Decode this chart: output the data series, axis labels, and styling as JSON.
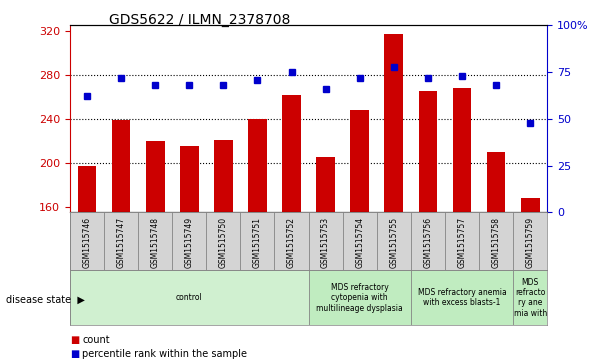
{
  "title": "GDS5622 / ILMN_2378708",
  "samples": [
    "GSM1515746",
    "GSM1515747",
    "GSM1515748",
    "GSM1515749",
    "GSM1515750",
    "GSM1515751",
    "GSM1515752",
    "GSM1515753",
    "GSM1515754",
    "GSM1515755",
    "GSM1515756",
    "GSM1515757",
    "GSM1515758",
    "GSM1515759"
  ],
  "counts": [
    197,
    239,
    220,
    215,
    221,
    240,
    262,
    205,
    248,
    317,
    265,
    268,
    210,
    168
  ],
  "percentiles": [
    62,
    72,
    68,
    68,
    68,
    71,
    75,
    66,
    72,
    78,
    72,
    73,
    68,
    48
  ],
  "ylim_left": [
    155,
    325
  ],
  "ylim_right": [
    0,
    100
  ],
  "yticks_left": [
    160,
    200,
    240,
    280,
    320
  ],
  "yticks_right": [
    0,
    25,
    50,
    75,
    100
  ],
  "bar_color": "#cc0000",
  "dot_color": "#0000cc",
  "grid_color": "#000000",
  "tick_label_color_left": "#cc0000",
  "tick_label_color_right": "#0000cc",
  "sample_bg_color": "#d4d4d4",
  "disease_groups": [
    {
      "label": "control",
      "start": 0,
      "end": 7,
      "color": "#d0f0d0"
    },
    {
      "label": "MDS refractory\ncytopenia with\nmultilineage dysplasia",
      "start": 7,
      "end": 10,
      "color": "#c0ecc0"
    },
    {
      "label": "MDS refractory anemia\nwith excess blasts-1",
      "start": 10,
      "end": 13,
      "color": "#c0ecc0"
    },
    {
      "label": "MDS\nrefracto\nry ane\nmia with",
      "start": 13,
      "end": 14,
      "color": "#c0ecc0"
    }
  ],
  "legend_count_label": "count",
  "legend_pct_label": "percentile rank within the sample",
  "disease_state_label": "disease state"
}
